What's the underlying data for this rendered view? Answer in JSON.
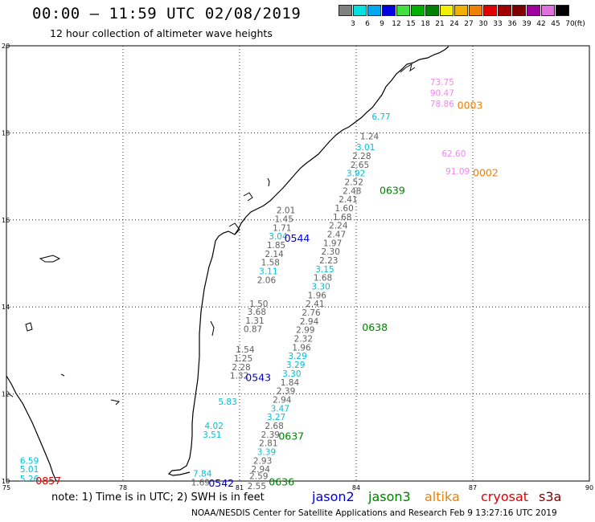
{
  "header": {
    "title": "00:00 – 11:59 UTC 02/08/2019",
    "subtitle": "12 hour collection of altimeter wave heights"
  },
  "colorbar": {
    "unit": "(ft)",
    "bins": [
      {
        "label": "3",
        "color": "#808080"
      },
      {
        "label": "6",
        "color": "#00e0e0"
      },
      {
        "label": "9",
        "color": "#00a8f0"
      },
      {
        "label": "12",
        "color": "#0000e0"
      },
      {
        "label": "15",
        "color": "#40e040"
      },
      {
        "label": "18",
        "color": "#00b000"
      },
      {
        "label": "21",
        "color": "#008000"
      },
      {
        "label": "24",
        "color": "#f0f000"
      },
      {
        "label": "27",
        "color": "#f0b000"
      },
      {
        "label": "30",
        "color": "#f08000"
      },
      {
        "label": "33",
        "color": "#e00000"
      },
      {
        "label": "36",
        "color": "#a00000"
      },
      {
        "label": "39",
        "color": "#800000"
      },
      {
        "label": "42",
        "color": "#a000a0"
      },
      {
        "label": "45",
        "color": "#e070e0"
      },
      {
        "label": "70",
        "color": "#000000"
      }
    ]
  },
  "map": {
    "lon_range": [
      75,
      90
    ],
    "lat_range": [
      10,
      20
    ],
    "lon_ticks": [
      "75",
      "78",
      "81",
      "84",
      "87",
      "90"
    ],
    "lat_ticks": [
      "20",
      "18",
      "16",
      "14",
      "12",
      "10"
    ],
    "grid": true
  },
  "observations": [
    {
      "lon": 85.9,
      "lat": 19.1,
      "value": "73.75",
      "color": "#ee88ee"
    },
    {
      "lon": 85.9,
      "lat": 18.85,
      "value": "90.47",
      "color": "#ee88ee"
    },
    {
      "lon": 85.9,
      "lat": 18.6,
      "value": "78.86",
      "color": "#ee88ee"
    },
    {
      "lon": 86.2,
      "lat": 17.45,
      "value": "62.60",
      "color": "#ee88ee"
    },
    {
      "lon": 86.3,
      "lat": 17.05,
      "value": "91.09",
      "color": "#ee88ee"
    },
    {
      "lon": 84.4,
      "lat": 18.3,
      "value": "6.77",
      "color": "#00c0d8"
    },
    {
      "lon": 84.1,
      "lat": 17.85,
      "value": "1.24",
      "color": "#606060"
    },
    {
      "lon": 84.0,
      "lat": 17.6,
      "value": "3.01",
      "color": "#00c0d8"
    },
    {
      "lon": 83.9,
      "lat": 17.4,
      "value": "2.28",
      "color": "#606060"
    },
    {
      "lon": 83.85,
      "lat": 17.2,
      "value": "2.65",
      "color": "#606060"
    },
    {
      "lon": 83.75,
      "lat": 17.0,
      "value": "3.92",
      "color": "#00c0d8"
    },
    {
      "lon": 83.7,
      "lat": 16.8,
      "value": "2.52",
      "color": "#606060"
    },
    {
      "lon": 83.65,
      "lat": 16.6,
      "value": "2.48",
      "color": "#606060"
    },
    {
      "lon": 83.55,
      "lat": 16.4,
      "value": "2.41",
      "color": "#606060"
    },
    {
      "lon": 83.45,
      "lat": 16.2,
      "value": "1.60",
      "color": "#606060"
    },
    {
      "lon": 83.4,
      "lat": 16.0,
      "value": "1.68",
      "color": "#606060"
    },
    {
      "lon": 83.3,
      "lat": 15.8,
      "value": "2.24",
      "color": "#606060"
    },
    {
      "lon": 83.25,
      "lat": 15.6,
      "value": "2.47",
      "color": "#606060"
    },
    {
      "lon": 83.15,
      "lat": 15.4,
      "value": "1.97",
      "color": "#606060"
    },
    {
      "lon": 83.1,
      "lat": 15.2,
      "value": "2.30",
      "color": "#606060"
    },
    {
      "lon": 83.05,
      "lat": 15.0,
      "value": "2.23",
      "color": "#606060"
    },
    {
      "lon": 82.95,
      "lat": 14.8,
      "value": "3.15",
      "color": "#00c0d8"
    },
    {
      "lon": 82.9,
      "lat": 14.6,
      "value": "1.68",
      "color": "#606060"
    },
    {
      "lon": 82.85,
      "lat": 14.4,
      "value": "3.30",
      "color": "#00c0d8"
    },
    {
      "lon": 82.75,
      "lat": 14.2,
      "value": "1.96",
      "color": "#606060"
    },
    {
      "lon": 82.7,
      "lat": 14.0,
      "value": "2.41",
      "color": "#606060"
    },
    {
      "lon": 82.6,
      "lat": 13.8,
      "value": "2.76",
      "color": "#606060"
    },
    {
      "lon": 82.55,
      "lat": 13.6,
      "value": "2.94",
      "color": "#606060"
    },
    {
      "lon": 82.45,
      "lat": 13.4,
      "value": "2.99",
      "color": "#606060"
    },
    {
      "lon": 82.4,
      "lat": 13.2,
      "value": "2.32",
      "color": "#606060"
    },
    {
      "lon": 82.35,
      "lat": 13.0,
      "value": "1.96",
      "color": "#606060"
    },
    {
      "lon": 82.25,
      "lat": 12.8,
      "value": "3.29",
      "color": "#00c0d8"
    },
    {
      "lon": 82.2,
      "lat": 12.6,
      "value": "3.29",
      "color": "#00c0d8"
    },
    {
      "lon": 82.1,
      "lat": 12.4,
      "value": "3.30",
      "color": "#00c0d8"
    },
    {
      "lon": 82.05,
      "lat": 12.2,
      "value": "1.84",
      "color": "#606060"
    },
    {
      "lon": 81.95,
      "lat": 12.0,
      "value": "2.39",
      "color": "#606060"
    },
    {
      "lon": 81.85,
      "lat": 11.8,
      "value": "2.94",
      "color": "#606060"
    },
    {
      "lon": 81.8,
      "lat": 11.6,
      "value": "3.47",
      "color": "#00c0d8"
    },
    {
      "lon": 81.7,
      "lat": 11.4,
      "value": "3.27",
      "color": "#00c0d8"
    },
    {
      "lon": 81.65,
      "lat": 11.2,
      "value": "2.68",
      "color": "#606060"
    },
    {
      "lon": 81.55,
      "lat": 11.0,
      "value": "2.39",
      "color": "#606060"
    },
    {
      "lon": 81.5,
      "lat": 10.8,
      "value": "2.81",
      "color": "#606060"
    },
    {
      "lon": 81.45,
      "lat": 10.6,
      "value": "3.39",
      "color": "#00c0d8"
    },
    {
      "lon": 81.35,
      "lat": 10.4,
      "value": "2.93",
      "color": "#606060"
    },
    {
      "lon": 81.3,
      "lat": 10.2,
      "value": "2.94",
      "color": "#606060"
    },
    {
      "lon": 81.25,
      "lat": 10.05,
      "value": "2.59",
      "color": "#606060"
    },
    {
      "lon": 81.2,
      "lat": 9.82,
      "value": "2.55",
      "color": "#606060"
    },
    {
      "lon": 81.95,
      "lat": 16.15,
      "value": "2.01",
      "color": "#606060"
    },
    {
      "lon": 81.9,
      "lat": 15.95,
      "value": "1.45",
      "color": "#606060"
    },
    {
      "lon": 81.85,
      "lat": 15.75,
      "value": "1.71",
      "color": "#606060"
    },
    {
      "lon": 81.75,
      "lat": 15.55,
      "value": "3.04",
      "color": "#00c0d8"
    },
    {
      "lon": 81.7,
      "lat": 15.35,
      "value": "1.85",
      "color": "#606060"
    },
    {
      "lon": 81.65,
      "lat": 15.15,
      "value": "2.14",
      "color": "#606060"
    },
    {
      "lon": 81.55,
      "lat": 14.95,
      "value": "1.58",
      "color": "#606060"
    },
    {
      "lon": 81.5,
      "lat": 14.75,
      "value": "3.11",
      "color": "#00c0d8"
    },
    {
      "lon": 81.45,
      "lat": 14.55,
      "value": "2.06",
      "color": "#606060"
    },
    {
      "lon": 81.25,
      "lat": 14.0,
      "value": "1.50",
      "color": "#606060"
    },
    {
      "lon": 81.2,
      "lat": 13.82,
      "value": "3.68",
      "color": "#606060"
    },
    {
      "lon": 81.15,
      "lat": 13.62,
      "value": "1.31",
      "color": "#606060"
    },
    {
      "lon": 81.1,
      "lat": 13.42,
      "value": "0.87",
      "color": "#606060"
    },
    {
      "lon": 80.9,
      "lat": 12.95,
      "value": "1.54",
      "color": "#606060"
    },
    {
      "lon": 80.85,
      "lat": 12.75,
      "value": "1.25",
      "color": "#606060"
    },
    {
      "lon": 80.8,
      "lat": 12.55,
      "value": "2.28",
      "color": "#606060"
    },
    {
      "lon": 80.75,
      "lat": 12.35,
      "value": "1.32",
      "color": "#606060"
    },
    {
      "lon": 80.45,
      "lat": 11.75,
      "value": "5.83",
      "color": "#00c0d8"
    },
    {
      "lon": 80.1,
      "lat": 11.2,
      "value": "4.02",
      "color": "#00c0d8"
    },
    {
      "lon": 80.05,
      "lat": 11.0,
      "value": "3.51",
      "color": "#00c0d8"
    },
    {
      "lon": 79.8,
      "lat": 10.1,
      "value": "7.84",
      "color": "#00c0d8"
    },
    {
      "lon": 79.75,
      "lat": 9.9,
      "value": "1.69",
      "color": "#606060"
    },
    {
      "lon": 75.35,
      "lat": 10.4,
      "value": "6.59",
      "color": "#00c0d8"
    },
    {
      "lon": 75.35,
      "lat": 10.2,
      "value": "5.01",
      "color": "#00c0d8"
    },
    {
      "lon": 75.35,
      "lat": 9.98,
      "value": "5.26",
      "color": "#00c0d8"
    }
  ],
  "passes": [
    {
      "lon": 86.6,
      "lat": 18.55,
      "label": "0003",
      "color": "#f08000"
    },
    {
      "lon": 87.0,
      "lat": 17.0,
      "label": "0002",
      "color": "#f08000"
    },
    {
      "lon": 84.6,
      "lat": 16.6,
      "label": "0639",
      "color": "#008000"
    },
    {
      "lon": 82.15,
      "lat": 15.5,
      "label": "0544",
      "color": "#0000d0"
    },
    {
      "lon": 84.15,
      "lat": 13.45,
      "label": "0638",
      "color": "#008000"
    },
    {
      "lon": 81.15,
      "lat": 12.3,
      "label": "0543",
      "color": "#0000d0"
    },
    {
      "lon": 82.0,
      "lat": 10.95,
      "label": "0637",
      "color": "#008000"
    },
    {
      "lon": 81.75,
      "lat": 9.9,
      "label": "0636",
      "color": "#008000"
    },
    {
      "lon": 80.2,
      "lat": 9.87,
      "label": "0542",
      "color": "#0000d0"
    },
    {
      "lon": 75.75,
      "lat": 9.93,
      "label": "0857",
      "color": "#e00000"
    }
  ],
  "legend": {
    "note": "note: 1) Time is in UTC; 2) SWH is in feet",
    "satellites": [
      {
        "name": "jason2",
        "color": "#0000d0"
      },
      {
        "name": "jason3",
        "color": "#008000"
      },
      {
        "name": "altika",
        "color": "#f08000"
      },
      {
        "name": "cryosat",
        "color": "#e00000"
      },
      {
        "name": "s3a",
        "color": "#800000"
      }
    ]
  },
  "footer": "NOAA/NESDIS Center for Satellite Applications and Research    Feb  9 13:27:16 UTC 2019"
}
